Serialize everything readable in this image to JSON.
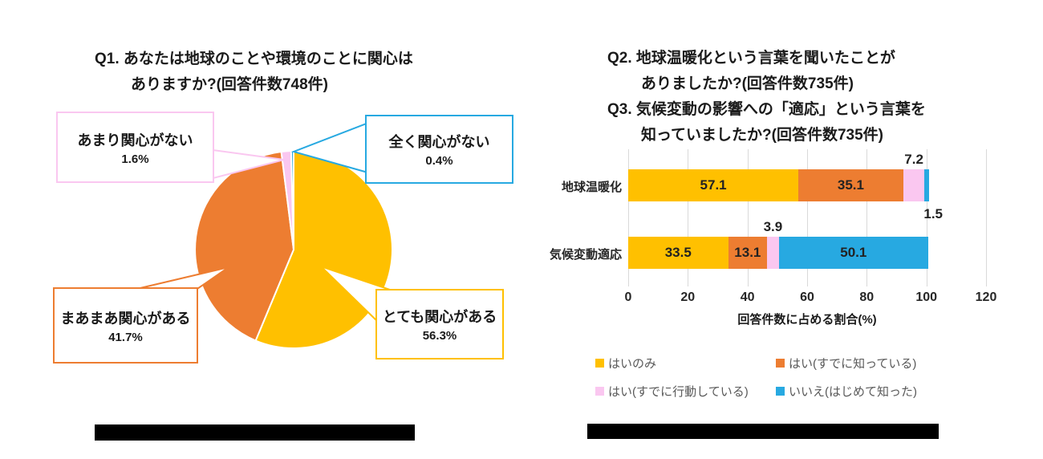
{
  "page": {
    "background": "#FFFFFF"
  },
  "colors": {
    "yellow": "#FFC000",
    "orange": "#ED7D31",
    "pink": "#FAC7F0",
    "blue": "#27A9E1",
    "gridline": "#D9D9D9",
    "legend_text": "#595959",
    "text": "#1A1A1A",
    "redaction": "#000000"
  },
  "pie_chart": {
    "title_lines": [
      "Q1. あなたは地球のことや環境のことに関心は",
      "ありますか?(回答件数748件)"
    ],
    "callouts": [
      {
        "label": "とても関心がある",
        "value_text": "56.3%"
      },
      {
        "label": "まあまあ関心がある",
        "value_text": "41.7%"
      },
      {
        "label": "あまり関心がない",
        "value_text": "1.6%"
      },
      {
        "label": "全く関心がない",
        "value_text": "0.4%"
      }
    ],
    "caption": {
      "redacted": true
    }
  },
  "bar_chart": {
    "title_lines": [
      "Q2. 地球温暖化という言葉を聞いたことが",
      "ありましたか?(回答件数735件)",
      "Q3. 気候変動の影響への「適応」という言葉を",
      "知っていましたか?(回答件数735件)"
    ],
    "xlabel": "回答件数に占める割合(%)",
    "caption": {
      "redacted": true
    }
  },
  "chart_data": [
    {
      "type": "pie",
      "title": "Q1. あなたは地球のことや環境のことに関心はありますか?(回答件数748件)",
      "unit": "%",
      "start_angle": "12-oclock",
      "direction": "clockwise",
      "slices": [
        {
          "label": "とても関心がある",
          "value": 56.3,
          "color": "#FFC000"
        },
        {
          "label": "まあまあ関心がある",
          "value": 41.7,
          "color": "#ED7D31"
        },
        {
          "label": "あまり関心がない",
          "value": 1.6,
          "color": "#FAC7F0"
        },
        {
          "label": "全く関心がない",
          "value": 0.4,
          "color": "#27A9E1"
        }
      ]
    },
    {
      "type": "bar",
      "orientation": "horizontal",
      "stacked": true,
      "title": "Q2. 地球温暖化という言葉を聞いたことがありましたか?(回答件数735件) Q3. 気候変動の影響への「適応」という言葉を知っていましたか?(回答件数735件)",
      "categories": [
        "地球温暖化",
        "気候変動適応"
      ],
      "series": [
        {
          "name": "はいのみ",
          "color": "#FFC000",
          "values": [
            57.1,
            33.5
          ]
        },
        {
          "name": "はい(すでに知っている)",
          "color": "#ED7D31",
          "values": [
            35.1,
            13.1
          ]
        },
        {
          "name": "はい(すでに行動している)",
          "color": "#FAC7F0",
          "values": [
            7.2,
            3.9
          ]
        },
        {
          "name": "いいえ(はじめて知った)",
          "color": "#27A9E1",
          "values": [
            1.5,
            50.1
          ]
        }
      ],
      "xlabel": "回答件数に占める割合(%)",
      "xlim": [
        0,
        120
      ],
      "xticks": [
        0,
        20,
        40,
        60,
        80,
        100,
        120
      ],
      "grid": true,
      "legend_position": "bottom"
    }
  ]
}
